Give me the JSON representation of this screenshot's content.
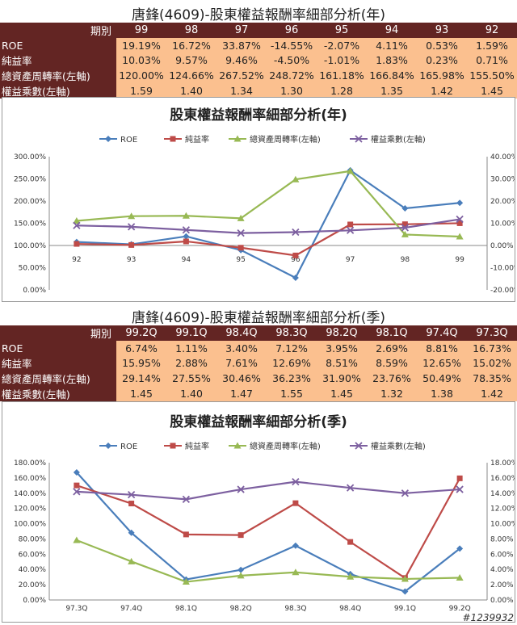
{
  "annual": {
    "table_title": "唐鋒(4609)-股東權益報酬率細部分析(年)",
    "period_label": "期別",
    "periods": [
      "99",
      "98",
      "97",
      "96",
      "95",
      "94",
      "93",
      "92"
    ],
    "rows": [
      {
        "label": "ROE",
        "values": [
          "19.19%",
          "16.72%",
          "33.87%",
          "-14.55%",
          "-2.07%",
          "4.11%",
          "0.53%",
          "1.59%"
        ]
      },
      {
        "label": "純益率",
        "values": [
          "10.03%",
          "9.57%",
          "9.46%",
          "-4.50%",
          "-1.01%",
          "1.83%",
          "0.23%",
          "0.71%"
        ]
      },
      {
        "label": "總資產周轉率(左軸)",
        "values": [
          "120.00%",
          "124.66%",
          "267.52%",
          "248.72%",
          "161.18%",
          "166.84%",
          "165.98%",
          "155.50%"
        ]
      },
      {
        "label": "權益乘數(左軸)",
        "values": [
          "1.59",
          "1.40",
          "1.34",
          "1.30",
          "1.28",
          "1.35",
          "1.42",
          "1.45"
        ]
      }
    ]
  },
  "quarterly": {
    "table_title": "唐鋒(4609)-股東權益報酬率細部分析(季)",
    "period_label": "期別",
    "periods": [
      "99.2Q",
      "99.1Q",
      "98.4Q",
      "98.3Q",
      "98.2Q",
      "98.1Q",
      "97.4Q",
      "97.3Q"
    ],
    "rows": [
      {
        "label": "ROE",
        "values": [
          "6.74%",
          "1.11%",
          "3.40%",
          "7.12%",
          "3.95%",
          "2.69%",
          "8.81%",
          "16.73%"
        ]
      },
      {
        "label": "純益率",
        "values": [
          "15.95%",
          "2.88%",
          "7.61%",
          "12.69%",
          "8.51%",
          "8.59%",
          "12.65%",
          "15.02%"
        ]
      },
      {
        "label": "總資產周轉率(左軸)",
        "values": [
          "29.14%",
          "27.55%",
          "30.46%",
          "36.23%",
          "31.90%",
          "23.76%",
          "50.49%",
          "78.35%"
        ]
      },
      {
        "label": "權益乘數(左軸)",
        "values": [
          "1.45",
          "1.40",
          "1.47",
          "1.55",
          "1.45",
          "1.32",
          "1.38",
          "1.42"
        ]
      }
    ]
  },
  "chart_data": [
    {
      "type": "line",
      "title": "股東權益報酬率細部分析(年)",
      "categories": [
        "92",
        "93",
        "94",
        "95",
        "96",
        "97",
        "98",
        "99"
      ],
      "left_ticks": [
        "0.00%",
        "50.00%",
        "100.00%",
        "150.00%",
        "200.00%",
        "250.00%",
        "300.00%"
      ],
      "ylim_left": [
        0,
        300
      ],
      "right_ticks": [
        "-20.00%",
        "-10.00%",
        "0.00%",
        "10.00%",
        "20.00%",
        "30.00%",
        "40.00%"
      ],
      "ylim_right": [
        -20,
        40
      ],
      "legend_position": "top",
      "series": [
        {
          "name": "ROE",
          "axis": "right",
          "color": "#4a7ebb",
          "marker": "diamond",
          "values": [
            1.59,
            0.53,
            4.11,
            -2.07,
            -14.55,
            33.87,
            16.72,
            19.19
          ]
        },
        {
          "name": "純益率",
          "axis": "right",
          "color": "#be4b48",
          "marker": "square",
          "values": [
            0.71,
            0.23,
            1.83,
            -1.01,
            -4.5,
            9.46,
            9.57,
            10.03
          ]
        },
        {
          "name": "總資產周轉率(左軸)",
          "axis": "left",
          "color": "#98b954",
          "marker": "triangle",
          "values": [
            155.5,
            165.98,
            166.84,
            161.18,
            248.72,
            267.52,
            124.66,
            120.0
          ]
        },
        {
          "name": "權益乘數(左軸)",
          "axis": "left",
          "color": "#7d60a0",
          "marker": "x",
          "values": [
            145,
            142,
            135,
            128,
            130,
            134,
            140,
            159
          ]
        }
      ]
    },
    {
      "type": "line",
      "title": "股東權益報酬率細部分析(季)",
      "categories": [
        "97.3Q",
        "97.4Q",
        "98.1Q",
        "98.2Q",
        "98.3Q",
        "98.4Q",
        "99.1Q",
        "99.2Q"
      ],
      "left_ticks": [
        "0.00%",
        "20.00%",
        "40.00%",
        "60.00%",
        "80.00%",
        "100.00%",
        "120.00%",
        "140.00%",
        "160.00%",
        "180.00%"
      ],
      "ylim_left": [
        0,
        180
      ],
      "right_ticks": [
        "0.00%",
        "2.00%",
        "4.00%",
        "6.00%",
        "8.00%",
        "10.00%",
        "12.00%",
        "14.00%",
        "16.00%",
        "18.00%"
      ],
      "ylim_right": [
        0,
        18
      ],
      "legend_position": "top",
      "series": [
        {
          "name": "ROE",
          "axis": "right",
          "color": "#4a7ebb",
          "marker": "diamond",
          "values": [
            16.73,
            8.81,
            2.69,
            3.95,
            7.12,
            3.4,
            1.11,
            6.74
          ]
        },
        {
          "name": "純益率",
          "axis": "right",
          "color": "#be4b48",
          "marker": "square",
          "values": [
            15.02,
            12.65,
            8.59,
            8.51,
            12.69,
            7.61,
            2.88,
            15.95
          ]
        },
        {
          "name": "總資產周轉率(左軸)",
          "axis": "left",
          "color": "#98b954",
          "marker": "triangle",
          "values": [
            78.35,
            50.49,
            23.76,
            31.9,
            36.23,
            30.46,
            27.55,
            29.14
          ]
        },
        {
          "name": "權益乘數(左軸)",
          "axis": "left",
          "color": "#7d60a0",
          "marker": "x",
          "values": [
            142,
            138,
            132,
            145,
            155,
            147,
            140,
            145
          ]
        }
      ]
    }
  ],
  "watermark": "#1239932"
}
